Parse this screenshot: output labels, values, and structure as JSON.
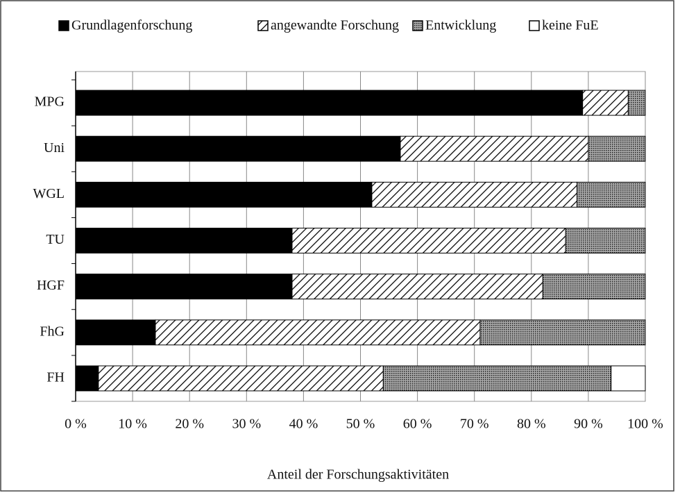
{
  "chart_data": {
    "type": "stacked-bar-horizontal",
    "categories": [
      "MPG",
      "Uni",
      "WGL",
      "TU",
      "HGF",
      "FhG",
      "FH"
    ],
    "series": [
      {
        "name": "Grundlagenforschung",
        "color": "#000000",
        "pattern": "solid",
        "values": [
          89,
          57,
          52,
          38,
          38,
          14,
          4
        ]
      },
      {
        "name": "angewandte Forschung",
        "color": "#000000",
        "pattern": "hatch",
        "values": [
          8,
          33,
          36,
          48,
          44,
          57,
          50
        ]
      },
      {
        "name": "Entwicklung",
        "color": "#000000",
        "pattern": "dots",
        "values": [
          3,
          10,
          12,
          14,
          18,
          29,
          40
        ]
      },
      {
        "name": "keine FuE",
        "color": "#ffffff",
        "pattern": "solid",
        "values": [
          0,
          0,
          0,
          0,
          0,
          0,
          6
        ]
      }
    ],
    "xlabel": "Anteil der Forschungsaktivitäten",
    "xlim": [
      0,
      100
    ],
    "xticks": [
      {
        "value": 0,
        "label": "0 %"
      },
      {
        "value": 10,
        "label": "10 %"
      },
      {
        "value": 20,
        "label": "20 %"
      },
      {
        "value": 30,
        "label": "30 %"
      },
      {
        "value": 40,
        "label": "40 %"
      },
      {
        "value": 50,
        "label": "50 %"
      },
      {
        "value": 60,
        "label": "60 %"
      },
      {
        "value": 70,
        "label": "70 %"
      },
      {
        "value": 80,
        "label": "80 %"
      },
      {
        "value": 90,
        "label": "90 %"
      },
      {
        "value": 100,
        "label": "100 %"
      }
    ],
    "grid": true,
    "legend": "top"
  }
}
